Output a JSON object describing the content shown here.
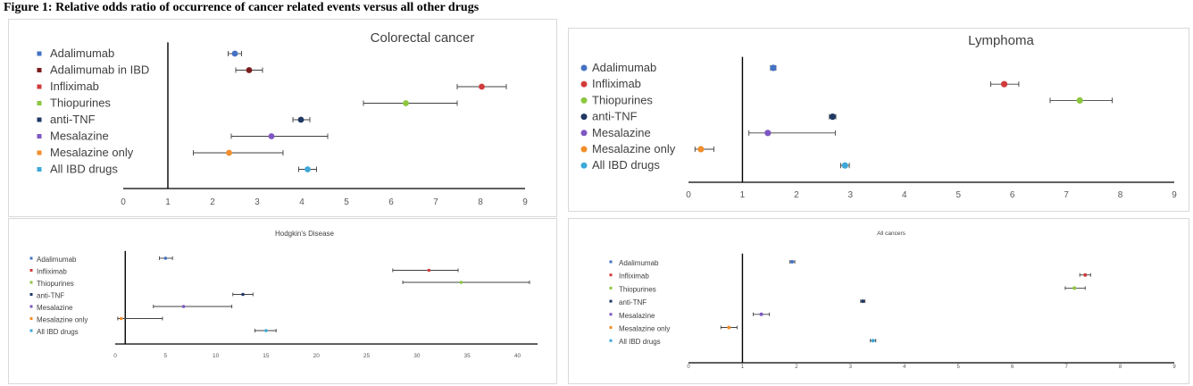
{
  "figure_title": "Figure 1: Relative odds ratio of occurrence of cancer related events versus all other drugs",
  "chart_data": [
    {
      "type": "scatter",
      "title": "Colorectal cancer",
      "xlim": [
        0,
        9
      ],
      "xticks": [
        0,
        1,
        2,
        3,
        4,
        5,
        6,
        7,
        8,
        9
      ],
      "reference_line_x": 1,
      "error_bars": true,
      "series": [
        {
          "name": "Adalimumab",
          "value": 2.5,
          "low": 2.35,
          "high": 2.65,
          "color": "#4472c4"
        },
        {
          "name": "Adalimumab in IBD",
          "value": 2.82,
          "low": 2.52,
          "high": 3.12,
          "color": "#7b1c1c"
        },
        {
          "name": "Infliximab",
          "value": 8.03,
          "low": 7.48,
          "high": 8.58,
          "color": "#d13b3b"
        },
        {
          "name": "Thiopurines",
          "value": 6.33,
          "low": 5.38,
          "high": 7.48,
          "color": "#8dc63f"
        },
        {
          "name": "anti-TNF",
          "value": 3.98,
          "low": 3.8,
          "high": 4.18,
          "color": "#1f3864"
        },
        {
          "name": "Mesalazine",
          "value": 3.32,
          "low": 2.42,
          "high": 4.58,
          "color": "#7e57c2"
        },
        {
          "name": "Mesalazine only",
          "value": 2.37,
          "low": 1.57,
          "high": 3.58,
          "color": "#f28e2b"
        },
        {
          "name": "All IBD drugs",
          "value": 4.13,
          "low": 3.93,
          "high": 4.33,
          "color": "#3ea8d8"
        }
      ]
    },
    {
      "type": "scatter",
      "title": "Lymphoma",
      "xlim": [
        0,
        9
      ],
      "xticks": [
        0,
        1,
        2,
        3,
        4,
        5,
        6,
        7,
        8,
        9
      ],
      "reference_line_x": 1,
      "error_bars": true,
      "series": [
        {
          "name": "Adalimumab",
          "value": 1.57,
          "low": 1.52,
          "high": 1.62,
          "color": "#4472c4"
        },
        {
          "name": "Infliximab",
          "value": 5.85,
          "low": 5.6,
          "high": 6.12,
          "color": "#d13b3b"
        },
        {
          "name": "Thiopurines",
          "value": 7.25,
          "low": 6.7,
          "high": 7.85,
          "color": "#8dc63f"
        },
        {
          "name": "anti-TNF",
          "value": 2.67,
          "low": 2.61,
          "high": 2.73,
          "color": "#1f3864"
        },
        {
          "name": "Mesalazine",
          "value": 1.47,
          "low": 1.12,
          "high": 2.72,
          "color": "#7e57c2"
        },
        {
          "name": "Mesalazine only",
          "value": 0.23,
          "low": 0.12,
          "high": 0.47,
          "color": "#f28e2b"
        },
        {
          "name": "All IBD drugs",
          "value": 2.9,
          "low": 2.82,
          "high": 2.98,
          "color": "#3ea8d8"
        }
      ]
    },
    {
      "type": "scatter",
      "title": "Hodgkin's Disease",
      "xlim": [
        0,
        42
      ],
      "xticks": [
        0,
        5,
        10,
        15,
        20,
        25,
        30,
        35,
        40
      ],
      "xtick_labels": [
        "0",
        "5",
        "10",
        "15",
        "20",
        "25",
        "30",
        "35",
        "40"
      ],
      "reference_line_x": 1,
      "error_bars": true,
      "series": [
        {
          "name": "Adalimumab",
          "value": 5.0,
          "low": 4.4,
          "high": 5.7,
          "color": "#4472c4"
        },
        {
          "name": "Infliximab",
          "value": 31.2,
          "low": 27.6,
          "high": 34.1,
          "color": "#d13b3b"
        },
        {
          "name": "Thiopurines",
          "value": 34.4,
          "low": 28.6,
          "high": 41.2,
          "color": "#8dc63f"
        },
        {
          "name": "anti-TNF",
          "value": 12.7,
          "low": 11.7,
          "high": 13.7,
          "color": "#1f3864"
        },
        {
          "name": "Mesalazine",
          "value": 6.8,
          "low": 3.8,
          "high": 11.6,
          "color": "#7e57c2"
        },
        {
          "name": "Mesalazine only",
          "value": 0.6,
          "low": 0.25,
          "high": 4.7,
          "color": "#f28e2b"
        },
        {
          "name": "All IBD drugs",
          "value": 15.0,
          "low": 13.9,
          "high": 16.0,
          "color": "#3ea8d8"
        }
      ]
    },
    {
      "type": "scatter",
      "title": "All cancers",
      "xlim": [
        0,
        9
      ],
      "xticks": [
        0,
        1,
        2,
        3,
        4,
        5,
        6,
        7,
        8,
        9
      ],
      "reference_line_x": 1,
      "error_bars": true,
      "series": [
        {
          "name": "Adalimumab",
          "value": 1.92,
          "low": 1.88,
          "high": 1.97,
          "color": "#4472c4"
        },
        {
          "name": "Infliximab",
          "value": 7.35,
          "low": 7.25,
          "high": 7.45,
          "color": "#d13b3b"
        },
        {
          "name": "Thiopurines",
          "value": 7.15,
          "low": 6.98,
          "high": 7.35,
          "color": "#8dc63f"
        },
        {
          "name": "anti-TNF",
          "value": 3.23,
          "low": 3.19,
          "high": 3.27,
          "color": "#1f3864"
        },
        {
          "name": "Mesalazine",
          "value": 1.35,
          "low": 1.2,
          "high": 1.5,
          "color": "#7e57c2"
        },
        {
          "name": "Mesalazine only",
          "value": 0.75,
          "low": 0.6,
          "high": 0.9,
          "color": "#f28e2b"
        },
        {
          "name": "All IBD drugs",
          "value": 3.42,
          "low": 3.37,
          "high": 3.47,
          "color": "#3ea8d8"
        }
      ]
    }
  ]
}
